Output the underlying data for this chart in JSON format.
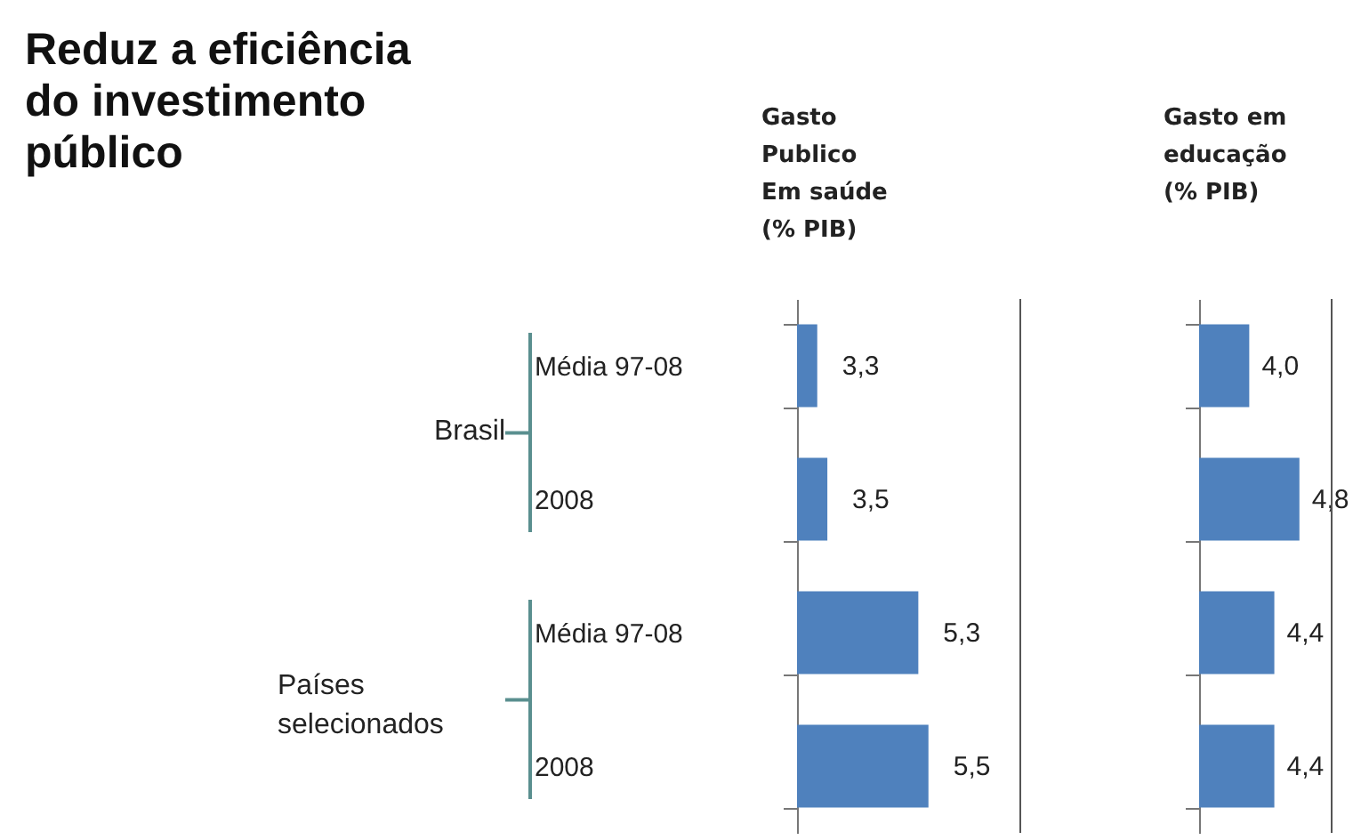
{
  "chart_data": [
    {
      "type": "bar",
      "orientation": "horizontal",
      "title": "Reduz a eficiência\ndo investimento\npúblico",
      "xlabel": "Gasto\nPublico\nEm saúde\n(% PIB)",
      "categories": [
        "Média 97-08",
        "2008",
        "Média 97-08",
        "2008"
      ],
      "values": [
        3.3,
        3.5,
        5.3,
        5.5
      ],
      "value_labels": [
        "3,3",
        "3,5",
        "5,3",
        "5,5"
      ],
      "color": "#4f81bd",
      "xlim": [
        2.9,
        7.3
      ],
      "tick_labels": "y",
      "annotations": [
        "Brasil",
        "Países selecionados"
      ]
    },
    {
      "type": "bar",
      "orientation": "horizontal",
      "xlabel": "Gasto em\neducação\n(% PIB)",
      "categories": [
        null,
        null,
        null,
        null
      ],
      "values": [
        4.0,
        4.8,
        4.4,
        4.4
      ],
      "value_labels": [
        "4,0",
        "4,8",
        "4,4",
        "4,4"
      ],
      "color": "#4f81bd",
      "xlim": [
        3.2,
        5.3
      ],
      "tick_labels": false
    }
  ]
}
